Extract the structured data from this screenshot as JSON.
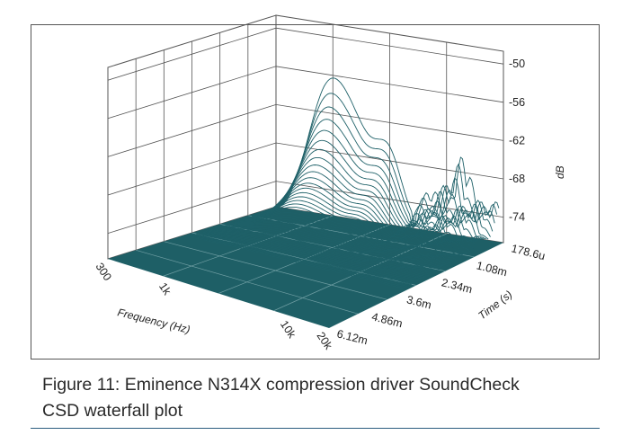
{
  "caption": {
    "line1": "Figure 11: Eminence N314X compression driver SoundCheck",
    "line2": "CSD waterfall plot"
  },
  "colors": {
    "surface": "#1e6068",
    "floor": "#1e5f66",
    "wall_lines": "#555555",
    "frame": "#555555",
    "caption_rule": "#2b5d7f"
  },
  "chart_data": {
    "type": "waterfall",
    "title": "",
    "xlabel": "Frequency (Hz)",
    "ylabel": "Time (s)",
    "zlabel": "dB",
    "x_ticks": [
      "300",
      "1k",
      "10k",
      "20k"
    ],
    "x_tick_values": [
      300,
      1000,
      10000,
      20000
    ],
    "x_scale": "log",
    "y_ticks": [
      "178.6u",
      "1.08m",
      "2.34m",
      "3.6m",
      "4.86m",
      "6.12m"
    ],
    "y_tick_values": [
      0.0001786,
      0.00108,
      0.00234,
      0.0036,
      0.00486,
      0.00612
    ],
    "z_ticks": [
      "-50",
      "-56",
      "-62",
      "-68",
      "-74"
    ],
    "z_tick_values": [
      -50,
      -56,
      -62,
      -68,
      -74
    ],
    "zlim": [
      -78,
      -48
    ],
    "grid": true
  }
}
